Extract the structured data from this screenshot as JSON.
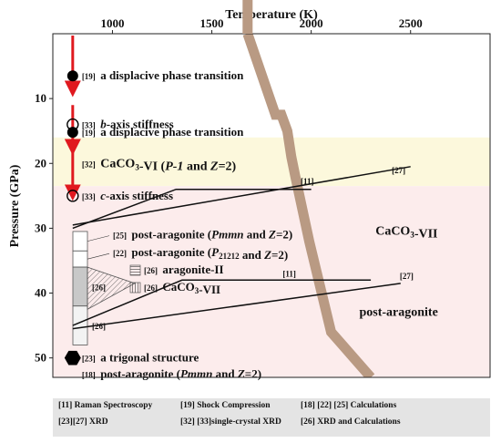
{
  "chart_data": {
    "type": "scatter",
    "xlabel": "Temperature (K)",
    "ylabel": "Pressure (GPa)",
    "xlim": [
      700,
      2900
    ],
    "ylim": [
      0,
      53
    ],
    "x_ticks": [
      1000,
      1500,
      2000,
      2500
    ],
    "y_ticks": [
      10,
      20,
      30,
      40,
      50
    ],
    "y_axis_inverted": true,
    "regions": [
      {
        "y_from": 16,
        "y_to": 23.5,
        "color": "#fcf8dc"
      },
      {
        "y_from": 23.5,
        "y_to": 53,
        "color": "#fcecec"
      }
    ],
    "phase_boundary": {
      "color": "#b99a83",
      "points": [
        [
          1680,
          0
        ],
        [
          1820,
          12.5
        ],
        [
          1850,
          12.5
        ],
        [
          1880,
          15
        ],
        [
          1900,
          19
        ],
        [
          1920,
          22
        ],
        [
          1990,
          32
        ],
        [
          2100,
          46
        ],
        [
          2300,
          53
        ]
      ]
    },
    "phase_labels": [
      {
        "text": "CaCO3-VII",
        "x": 2480,
        "y": 31
      },
      {
        "text": "post-aragonite",
        "x": 2440,
        "y": 43.5
      }
    ],
    "points": [
      {
        "ref": "[19]",
        "label": "a displacive phase transition",
        "x": 800,
        "y": 6.5,
        "marker": "filled-circle"
      },
      {
        "ref": "[33]",
        "label": "b-axis stiffness",
        "x": 800,
        "y": 14,
        "marker": "open-circle"
      },
      {
        "ref": "[19]",
        "label": "a displacive phase transition",
        "x": 800,
        "y": 15.2,
        "marker": "filled-circle"
      },
      {
        "ref": "[32]",
        "label": "CaCO3-VI (P-1 and Z=2)",
        "x": 800,
        "y": 20,
        "marker": "none"
      },
      {
        "ref": "[33]",
        "label": "c-axis stiffness",
        "x": 800,
        "y": 25,
        "marker": "open-circle"
      },
      {
        "ref": "[23]",
        "label": "a trigonal structure",
        "x": 800,
        "y": 50,
        "marker": "filled-hexagon"
      },
      {
        "ref": "[18]",
        "label": "post-aragonite (Pmmn and Z=2)",
        "x": 800,
        "y": 52.5,
        "marker": "none"
      }
    ],
    "shock_arrows": [
      [
        0,
        8.5
      ],
      [
        11,
        17.5
      ],
      [
        17.5,
        24.5
      ]
    ],
    "ranges": [
      {
        "ref": "[25]",
        "label": "post-aragonite (Pmmn and Z=2)",
        "x": 810,
        "y_from": 30.5,
        "y_to": 33.5,
        "fill": "#ffffff"
      },
      {
        "ref": "[22]",
        "label": "post-aragonite (P21212 and Z=2)",
        "x": 810,
        "y_from": 33.5,
        "y_to": 36,
        "fill": "#ffffff"
      },
      {
        "ref": "[26]",
        "label": "",
        "x": 810,
        "y_from": 36,
        "y_to": 42,
        "fill": "#c8c8c8"
      },
      {
        "ref": "[26]",
        "label": "",
        "x": 810,
        "y_from": 42,
        "y_to": 48,
        "fill": "#f3f3f3"
      }
    ],
    "hatch_legend": [
      {
        "ref": "[26]",
        "label": "aragonite-II",
        "pattern": "horizontal"
      },
      {
        "ref": "[26]",
        "label": "CaCO3-VII",
        "pattern": "vertical"
      }
    ],
    "lines": [
      {
        "ref": "[11]",
        "points": [
          [
            800,
            30
          ],
          [
            1320,
            24
          ],
          [
            2000,
            24
          ]
        ]
      },
      {
        "ref": "[27]",
        "points": [
          [
            800,
            29.5
          ],
          [
            2500,
            20.5
          ]
        ]
      },
      {
        "ref": "[11]",
        "points": [
          [
            800,
            45
          ],
          [
            1350,
            38
          ],
          [
            2300,
            38
          ]
        ]
      },
      {
        "ref": "[27]",
        "points": [
          [
            800,
            45.5
          ],
          [
            2450,
            38.5
          ]
        ]
      }
    ],
    "line_labels": [
      {
        "text": "[27]",
        "x": 2440,
        "y": 21.5
      },
      {
        "text": "[11]",
        "x": 1980,
        "y": 23.2
      },
      {
        "text": "[11]",
        "x": 1890,
        "y": 37.5
      },
      {
        "text": "[27]",
        "x": 2480,
        "y": 37.8
      }
    ],
    "legend": [
      "[11] Raman Spectroscopy",
      "[19] Shock Compression",
      "[18]  [22]  [25]  Calculations",
      "[23][27] XRD",
      "[32] [33]single-crystal XRD",
      "[26] XRD and Calculations"
    ]
  }
}
